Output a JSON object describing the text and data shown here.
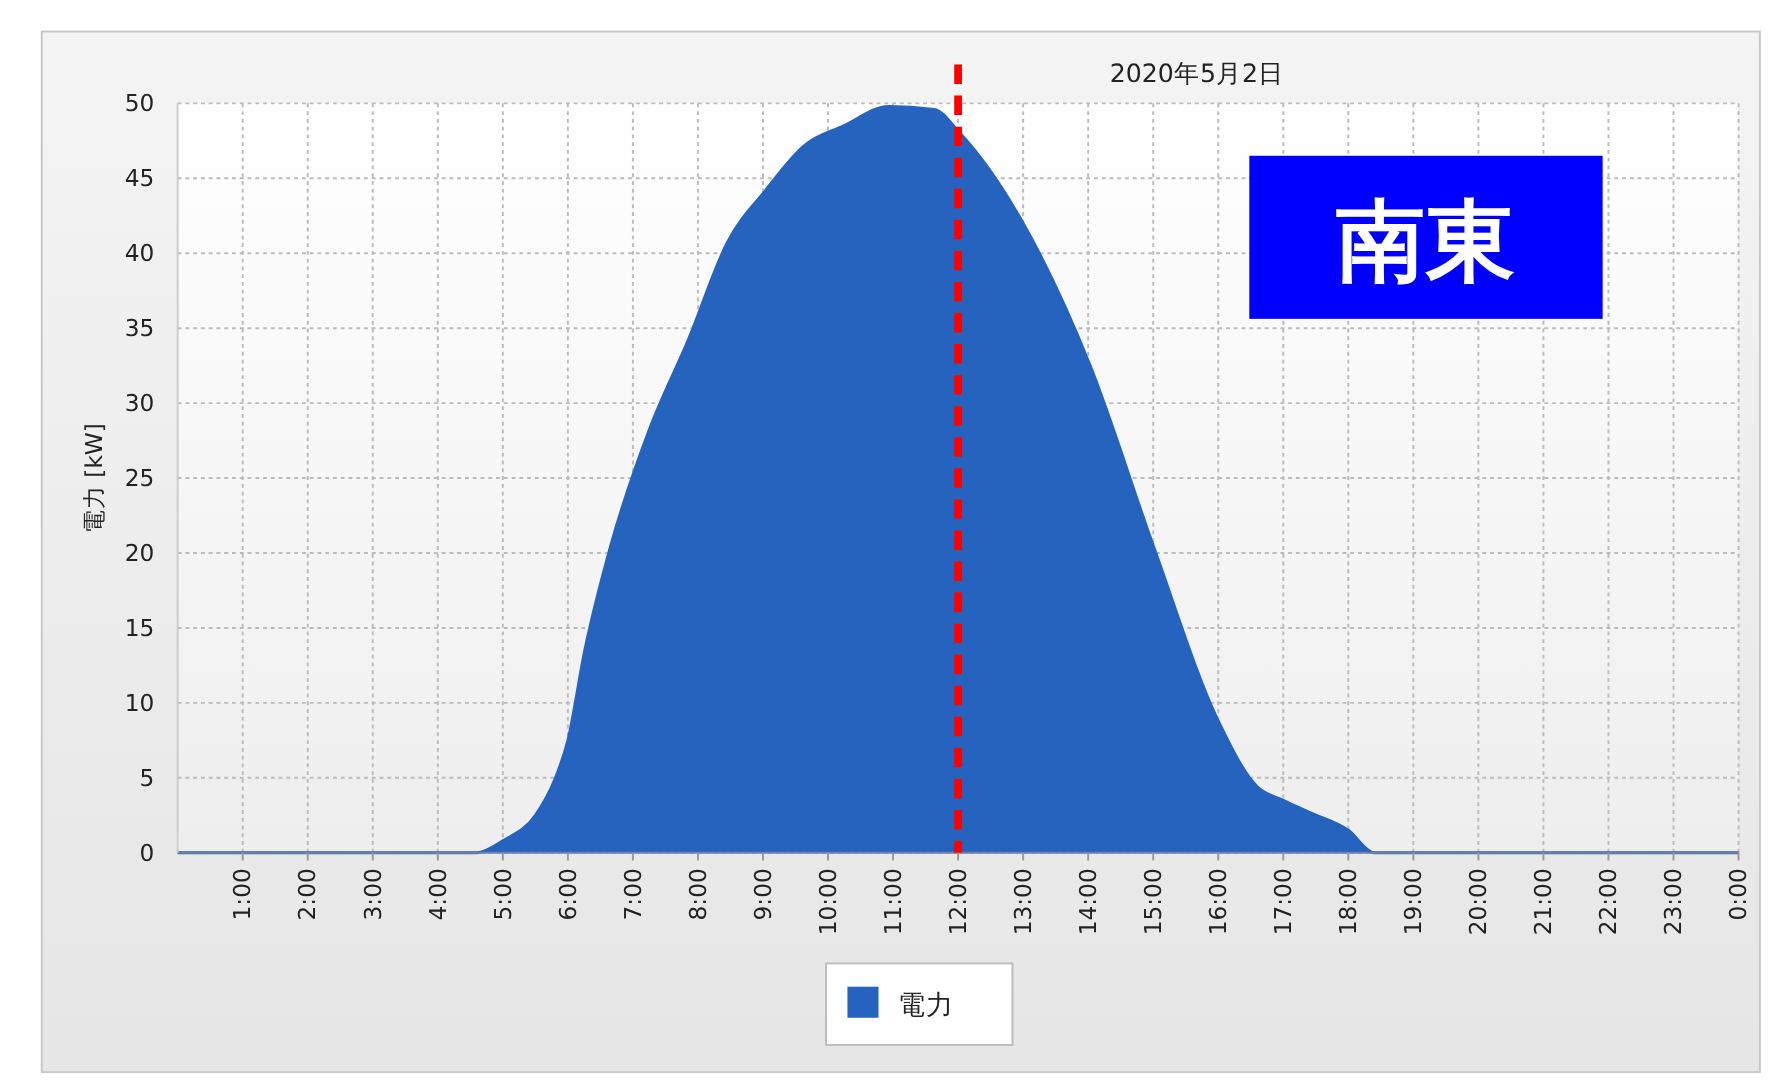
{
  "chart_data": {
    "type": "area",
    "title": "2020年5月2日",
    "ylabel": "電力 [kW]",
    "annotations": [
      "南東"
    ],
    "xlim": [
      0,
      24
    ],
    "ylim": [
      0,
      50
    ],
    "yticks": [
      0,
      5,
      10,
      15,
      20,
      25,
      30,
      35,
      40,
      45,
      50
    ],
    "xticks": [
      {
        "value": 1,
        "label": "1:00"
      },
      {
        "value": 2,
        "label": "2:00"
      },
      {
        "value": 3,
        "label": "3:00"
      },
      {
        "value": 4,
        "label": "4:00"
      },
      {
        "value": 5,
        "label": "5:00"
      },
      {
        "value": 6,
        "label": "6:00"
      },
      {
        "value": 7,
        "label": "7:00"
      },
      {
        "value": 8,
        "label": "8:00"
      },
      {
        "value": 9,
        "label": "9:00"
      },
      {
        "value": 10,
        "label": "10:00"
      },
      {
        "value": 11,
        "label": "11:00"
      },
      {
        "value": 12,
        "label": "12:00"
      },
      {
        "value": 13,
        "label": "13:00"
      },
      {
        "value": 14,
        "label": "14:00"
      },
      {
        "value": 15,
        "label": "15:00"
      },
      {
        "value": 16,
        "label": "16:00"
      },
      {
        "value": 17,
        "label": "17:00"
      },
      {
        "value": 18,
        "label": "18:00"
      },
      {
        "value": 19,
        "label": "19:00"
      },
      {
        "value": 20,
        "label": "20:00"
      },
      {
        "value": 21,
        "label": "21:00"
      },
      {
        "value": 22,
        "label": "22:00"
      },
      {
        "value": 23,
        "label": "23:00"
      },
      {
        "value": 24,
        "label": "0:00"
      }
    ],
    "grid": true,
    "legend": "bottom",
    "ref_lines": [
      {
        "axis": "x",
        "value": 12,
        "color": "#ff0000",
        "line_style": "dashed"
      }
    ],
    "series": [
      {
        "name": "電力",
        "color": "#2563be",
        "x": [
          0,
          4.6,
          5.0,
          5.5,
          5.8,
          6.0,
          6.26,
          6.66,
          7.25,
          7.85,
          8.45,
          9.04,
          9.64,
          10.24,
          10.93,
          11.63,
          12.03,
          13.0,
          14.03,
          15.0,
          16.0,
          16.6,
          17.0,
          17.4,
          18.0,
          18.4,
          24
        ],
        "values": [
          0,
          0,
          0.8,
          2.5,
          4.9,
          7.5,
          13.5,
          20.5,
          28.2,
          34.2,
          40.7,
          44.2,
          47.2,
          48.5,
          49.8,
          49.6,
          48.0,
          42,
          32.5,
          20.5,
          8.8,
          4.4,
          3.5,
          2.7,
          1.5,
          0,
          0
        ]
      }
    ]
  }
}
